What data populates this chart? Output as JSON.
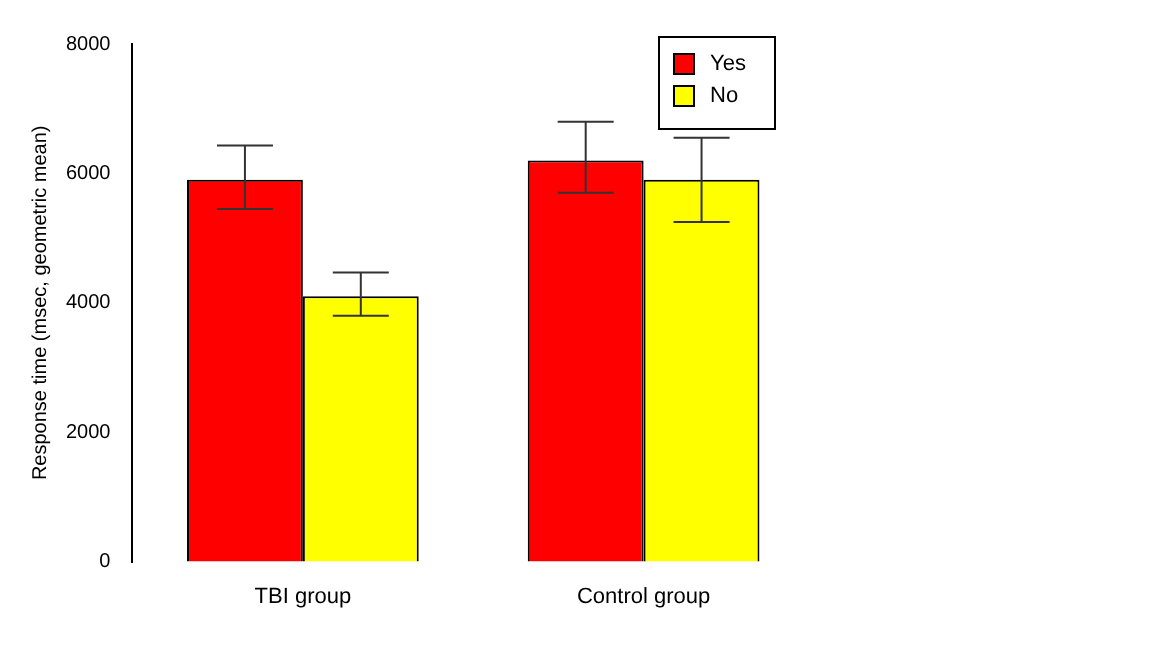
{
  "chart_data": {
    "type": "bar",
    "ylabel": "Response time (msec, geometric mean)",
    "categories": [
      "TBI group",
      "Control group"
    ],
    "series": [
      {
        "name": "Yes",
        "color": "#ff0000",
        "values": [
          5900,
          6200
        ],
        "errors": [
          [
            5450,
            6430
          ],
          [
            5700,
            6800
          ]
        ]
      },
      {
        "name": "No",
        "color": "#ffff00",
        "values": [
          4100,
          5900
        ],
        "errors": [
          [
            3800,
            4470
          ],
          [
            5250,
            6550
          ]
        ]
      }
    ],
    "ylim": [
      0,
      8000
    ],
    "yticks": [
      0,
      2000,
      4000,
      6000,
      8000
    ],
    "grid": false,
    "legend": "top right"
  }
}
